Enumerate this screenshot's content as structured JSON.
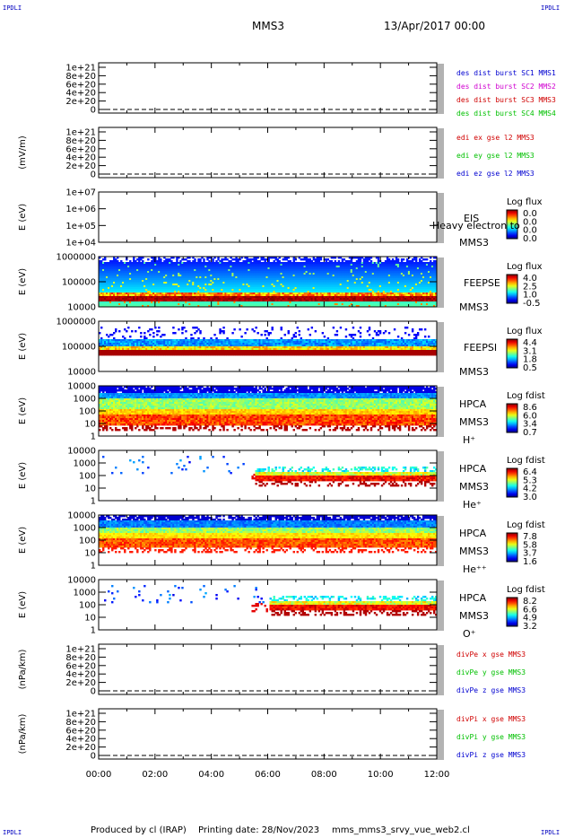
{
  "header": {
    "corner_label": "IPDLI",
    "spacecraft": "MMS3",
    "datetime": "13/Apr/2017 00:00"
  },
  "footer": {
    "producer": "Produced by cl (IRAP)",
    "printing_date": "Printing date: 28/Nov/2023",
    "plot_name": "mms_mms3_srvy_vue_web2.cl"
  },
  "colors": {
    "blue": "#0000d0",
    "magenta": "#d000d0",
    "red": "#d00000",
    "green": "#00c000"
  },
  "chart_data": {
    "type": "heatmap",
    "x_ticks": [
      "00:00",
      "02:00",
      "04:00",
      "06:00",
      "08:00",
      "10:00",
      "12:00"
    ],
    "xlim_hours": [
      0,
      12
    ],
    "panels": [
      {
        "kind": "line",
        "ylabel": "",
        "yticks": [
          "1e+21",
          "8e+20",
          "6e+20",
          "4e+20",
          "2e+20",
          "0"
        ],
        "legend": [
          {
            "text": "des dist burst SC1 MMS1",
            "color": "#0000d0"
          },
          {
            "text": "des dist burst SC2 MMS2",
            "color": "#d000d0"
          },
          {
            "text": "des dist burst SC3 MMS3",
            "color": "#d00000"
          },
          {
            "text": "des dist burst SC4 MMS4",
            "color": "#00c000"
          }
        ]
      },
      {
        "kind": "line",
        "ylabel": "(mV/m)",
        "yticks": [
          "1e+21",
          "8e+20",
          "6e+20",
          "4e+20",
          "2e+20",
          "0"
        ],
        "legend": [
          {
            "text": "edi ex gse l2 MMS3",
            "color": "#d00000"
          },
          {
            "text": "edi ey gse l2 MMS3",
            "color": "#00c000"
          },
          {
            "text": "edi ez gse l2 MMS3",
            "color": "#0000d0"
          }
        ]
      },
      {
        "kind": "spec",
        "ylabel": "E (eV)",
        "yticks": [
          "1e+07",
          "1e+06",
          "1e+05",
          "1e+04"
        ],
        "instrument": "EIS",
        "overlay": "Heavy electron to",
        "spacecraft": "MMS3",
        "species": "",
        "cbar_title": "Log flux",
        "cbar_ticks": [
          "0.0",
          "0.0",
          "0.0",
          "0.0"
        ],
        "pattern": "empty"
      },
      {
        "kind": "spec",
        "ylabel": "E (eV)",
        "yticks": [
          "1000000",
          "100000",
          "10000"
        ],
        "instrument": "FEEPSE",
        "spacecraft": "MMS3",
        "species": "",
        "cbar_title": "Log flux",
        "cbar_ticks": [
          "4.0",
          "2.5",
          "1.0",
          "-0.5"
        ],
        "pattern": "feepse"
      },
      {
        "kind": "spec",
        "ylabel": "E (eV)",
        "yticks": [
          "1000000",
          "100000",
          "10000"
        ],
        "instrument": "FEEPSI",
        "spacecraft": "MMS3",
        "species": "",
        "cbar_title": "Log flux",
        "cbar_ticks": [
          "4.4",
          "3.1",
          "1.8",
          "0.5"
        ],
        "pattern": "feepsi"
      },
      {
        "kind": "spec",
        "ylabel": "E (eV)",
        "yticks": [
          "10000",
          "1000",
          "100",
          "10",
          "1"
        ],
        "instrument": "HPCA",
        "spacecraft": "MMS3",
        "species": "H⁺",
        "cbar_title": "Log fdist",
        "cbar_ticks": [
          "8.6",
          "6.0",
          "3.4",
          "0.7"
        ],
        "pattern": "hplus"
      },
      {
        "kind": "spec",
        "ylabel": "E (eV)",
        "yticks": [
          "10000",
          "1000",
          "100",
          "10",
          "1"
        ],
        "instrument": "HPCA",
        "spacecraft": "MMS3",
        "species": "He⁺",
        "cbar_title": "Log fdist",
        "cbar_ticks": [
          "6.4",
          "5.3",
          "4.2",
          "3.0"
        ],
        "pattern": "heplus"
      },
      {
        "kind": "spec",
        "ylabel": "E (eV)",
        "yticks": [
          "10000",
          "1000",
          "100",
          "10",
          "1"
        ],
        "instrument": "HPCA",
        "spacecraft": "MMS3",
        "species": "He⁺⁺",
        "cbar_title": "Log fdist",
        "cbar_ticks": [
          "7.8",
          "5.8",
          "3.7",
          "1.6"
        ],
        "pattern": "hepp"
      },
      {
        "kind": "spec",
        "ylabel": "E (eV)",
        "yticks": [
          "10000",
          "1000",
          "100",
          "10",
          "1"
        ],
        "instrument": "HPCA",
        "spacecraft": "MMS3",
        "species": "O⁺",
        "cbar_title": "Log fdist",
        "cbar_ticks": [
          "8.2",
          "6.6",
          "4.9",
          "3.2"
        ],
        "pattern": "oplus"
      },
      {
        "kind": "line",
        "ylabel": "(nPa/km)",
        "yticks": [
          "1e+21",
          "8e+20",
          "6e+20",
          "4e+20",
          "2e+20",
          "0"
        ],
        "legend": [
          {
            "text": "divPe x gse MMS3",
            "color": "#d00000"
          },
          {
            "text": "divPe y gse MMS3",
            "color": "#00c000"
          },
          {
            "text": "divPe z gse MMS3",
            "color": "#0000d0"
          }
        ]
      },
      {
        "kind": "line",
        "ylabel": "(nPa/km)",
        "yticks": [
          "1e+21",
          "8e+20",
          "6e+20",
          "4e+20",
          "2e+20",
          "0"
        ],
        "legend": [
          {
            "text": "divPi x gse MMS3",
            "color": "#d00000"
          },
          {
            "text": "divPi y gse MMS3",
            "color": "#00c000"
          },
          {
            "text": "divPi z gse MMS3",
            "color": "#0000d0"
          }
        ]
      }
    ]
  }
}
